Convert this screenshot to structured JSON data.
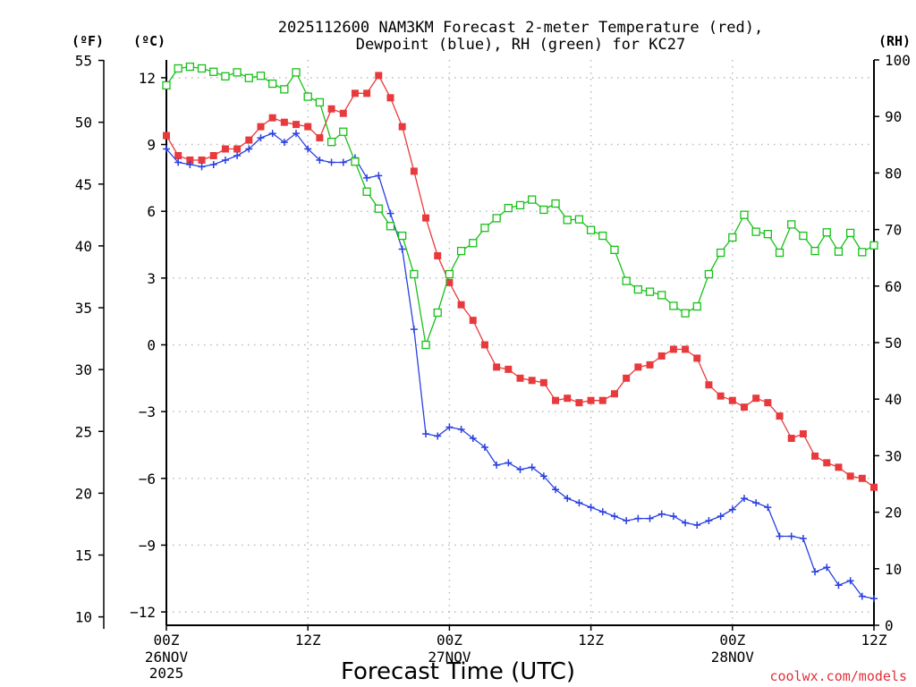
{
  "title": {
    "line1": "2025112600 NAM3KM Forecast 2-meter Temperature (red),",
    "line2": "Dewpoint (blue), RH (green) for KC27"
  },
  "credit": "coolwx.com/models",
  "colors": {
    "temp": "#e8393c",
    "dew": "#2a40e0",
    "rh": "#18c018"
  },
  "chart_data": {
    "type": "line",
    "title": "2025112600 NAM3KM Forecast 2-meter Temperature (red), Dewpoint (blue), RH (green) for KC27",
    "xlabel": "Forecast Time (UTC)",
    "x_unit_hours_from": "2025-11-26 00Z",
    "xlim": [
      0,
      60
    ],
    "x_ticks": [
      {
        "hour": 0,
        "label": "00Z",
        "date": "26NOV",
        "year": "2025"
      },
      {
        "hour": 12,
        "label": "12Z"
      },
      {
        "hour": 24,
        "label": "00Z",
        "date": "27NOV"
      },
      {
        "hour": 36,
        "label": "12Z"
      },
      {
        "hour": 48,
        "label": "00Z",
        "date": "28NOV"
      },
      {
        "hour": 60,
        "label": "12Z"
      }
    ],
    "y_left_celsius": {
      "label": "(ºC)",
      "lim": [
        -12.6,
        12.8
      ],
      "ticks": [
        -12,
        -9,
        -6,
        -3,
        0,
        3,
        6,
        9,
        12
      ],
      "tick_labels": [
        "−12",
        "−9",
        "−6",
        "−3",
        "0",
        "3",
        "6",
        "9",
        "12"
      ]
    },
    "y_left_fahrenheit": {
      "label": "(ºF)",
      "ticks": [
        10,
        15,
        20,
        25,
        30,
        35,
        40,
        45,
        50,
        55
      ],
      "tick_labels": [
        "10",
        "15",
        "20",
        "25",
        "30",
        "35",
        "40",
        "45",
        "50",
        "55"
      ]
    },
    "y_right_rh": {
      "label": "(RH)",
      "lim": [
        0,
        100
      ],
      "ticks": [
        0,
        10,
        20,
        30,
        40,
        50,
        60,
        70,
        80,
        90,
        100
      ],
      "tick_labels": [
        "0",
        "10",
        "20",
        "30",
        "40",
        "50",
        "60",
        "70",
        "80",
        "90",
        "100"
      ]
    },
    "series": [
      {
        "name": "2-meter Temperature",
        "unit": "C",
        "marker": "square",
        "hours": [
          0,
          1,
          2,
          3,
          4,
          5,
          6,
          7,
          8,
          9,
          10,
          11,
          12,
          13,
          14,
          15,
          16,
          17,
          18,
          19,
          20,
          21,
          22,
          23,
          24,
          25,
          26,
          27,
          28,
          29,
          30,
          31,
          32,
          33,
          34,
          35,
          36,
          37,
          38,
          39,
          40,
          41,
          42,
          43,
          44,
          45,
          46,
          47,
          48,
          49,
          50,
          51,
          52,
          53,
          54,
          55,
          56,
          57,
          58,
          59,
          60
        ],
        "values": [
          9.4,
          8.5,
          8.3,
          8.3,
          8.5,
          8.8,
          8.8,
          9.2,
          9.8,
          10.2,
          10.0,
          9.9,
          9.8,
          9.3,
          10.6,
          10.4,
          11.3,
          11.3,
          12.1,
          11.1,
          9.8,
          7.8,
          5.7,
          4.0,
          2.8,
          1.8,
          1.1,
          0.0,
          -1.0,
          -1.1,
          -1.5,
          -1.6,
          -1.7,
          -2.5,
          -2.4,
          -2.6,
          -2.5,
          -2.5,
          -2.2,
          -1.5,
          -1.0,
          -0.9,
          -0.5,
          -0.2,
          -0.2,
          -0.6,
          -1.8,
          -2.3,
          -2.5,
          -2.8,
          -2.4,
          -2.6,
          -3.2,
          -4.2,
          -4.0,
          -5.0,
          -5.3,
          -5.5,
          -5.9,
          -6.0,
          -6.4
        ]
      },
      {
        "name": "Dewpoint",
        "unit": "C",
        "marker": "plus",
        "hours": [
          0,
          1,
          2,
          3,
          4,
          5,
          6,
          7,
          8,
          9,
          10,
          11,
          12,
          13,
          14,
          15,
          16,
          17,
          18,
          19,
          20,
          21,
          22,
          23,
          24,
          25,
          26,
          27,
          28,
          29,
          30,
          31,
          32,
          33,
          34,
          35,
          36,
          37,
          38,
          39,
          40,
          41,
          42,
          43,
          44,
          45,
          46,
          47,
          48,
          49,
          50,
          51,
          52,
          53,
          54,
          55,
          56,
          57,
          58,
          59,
          60
        ],
        "values": [
          8.8,
          8.2,
          8.1,
          8.0,
          8.1,
          8.3,
          8.5,
          8.8,
          9.3,
          9.5,
          9.1,
          9.5,
          8.8,
          8.3,
          8.2,
          8.2,
          8.4,
          7.5,
          7.6,
          5.9,
          4.3,
          0.7,
          -4.0,
          -4.1,
          -3.7,
          -3.8,
          -4.2,
          -4.6,
          -5.4,
          -5.3,
          -5.6,
          -5.5,
          -5.9,
          -6.5,
          -6.9,
          -7.1,
          -7.3,
          -7.5,
          -7.7,
          -7.9,
          -7.8,
          -7.8,
          -7.6,
          -7.7,
          -8.0,
          -8.1,
          -7.9,
          -7.7,
          -7.4,
          -6.9,
          -7.1,
          -7.3,
          -8.6,
          -8.6,
          -8.7,
          -10.2,
          -10.0,
          -10.8,
          -10.6,
          -11.3,
          -11.4
        ]
      },
      {
        "name": "Relative Humidity",
        "unit": "%",
        "marker": "open-square",
        "hours": [
          0,
          1,
          2,
          3,
          4,
          5,
          6,
          7,
          8,
          9,
          10,
          11,
          12,
          13,
          14,
          15,
          16,
          17,
          18,
          19,
          20,
          21,
          22,
          23,
          24,
          25,
          26,
          27,
          28,
          29,
          30,
          31,
          32,
          33,
          34,
          35,
          36,
          37,
          38,
          39,
          40,
          41,
          42,
          43,
          44,
          45,
          46,
          47,
          48,
          49,
          50,
          51,
          52,
          53,
          54,
          55,
          56,
          57,
          58,
          59,
          60
        ],
        "values": [
          95.5,
          98.5,
          98.8,
          98.5,
          97.9,
          97.1,
          97.8,
          96.8,
          97.2,
          95.8,
          94.8,
          97.8,
          93.5,
          92.5,
          85.5,
          87.3,
          82.0,
          76.7,
          73.7,
          70.6,
          68.9,
          62.1,
          49.6,
          55.3,
          62.1,
          66.2,
          67.6,
          70.3,
          72.0,
          73.8,
          74.3,
          75.3,
          73.5,
          74.6,
          71.7,
          71.8,
          69.9,
          68.9,
          66.4,
          60.9,
          59.4,
          59.0,
          58.4,
          56.5,
          55.2,
          56.4,
          62.1,
          65.9,
          68.6,
          72.6,
          69.6,
          69.2,
          65.9,
          70.9,
          68.9,
          66.2,
          69.5,
          66.1,
          69.4,
          66.0,
          67.2
        ]
      }
    ]
  }
}
